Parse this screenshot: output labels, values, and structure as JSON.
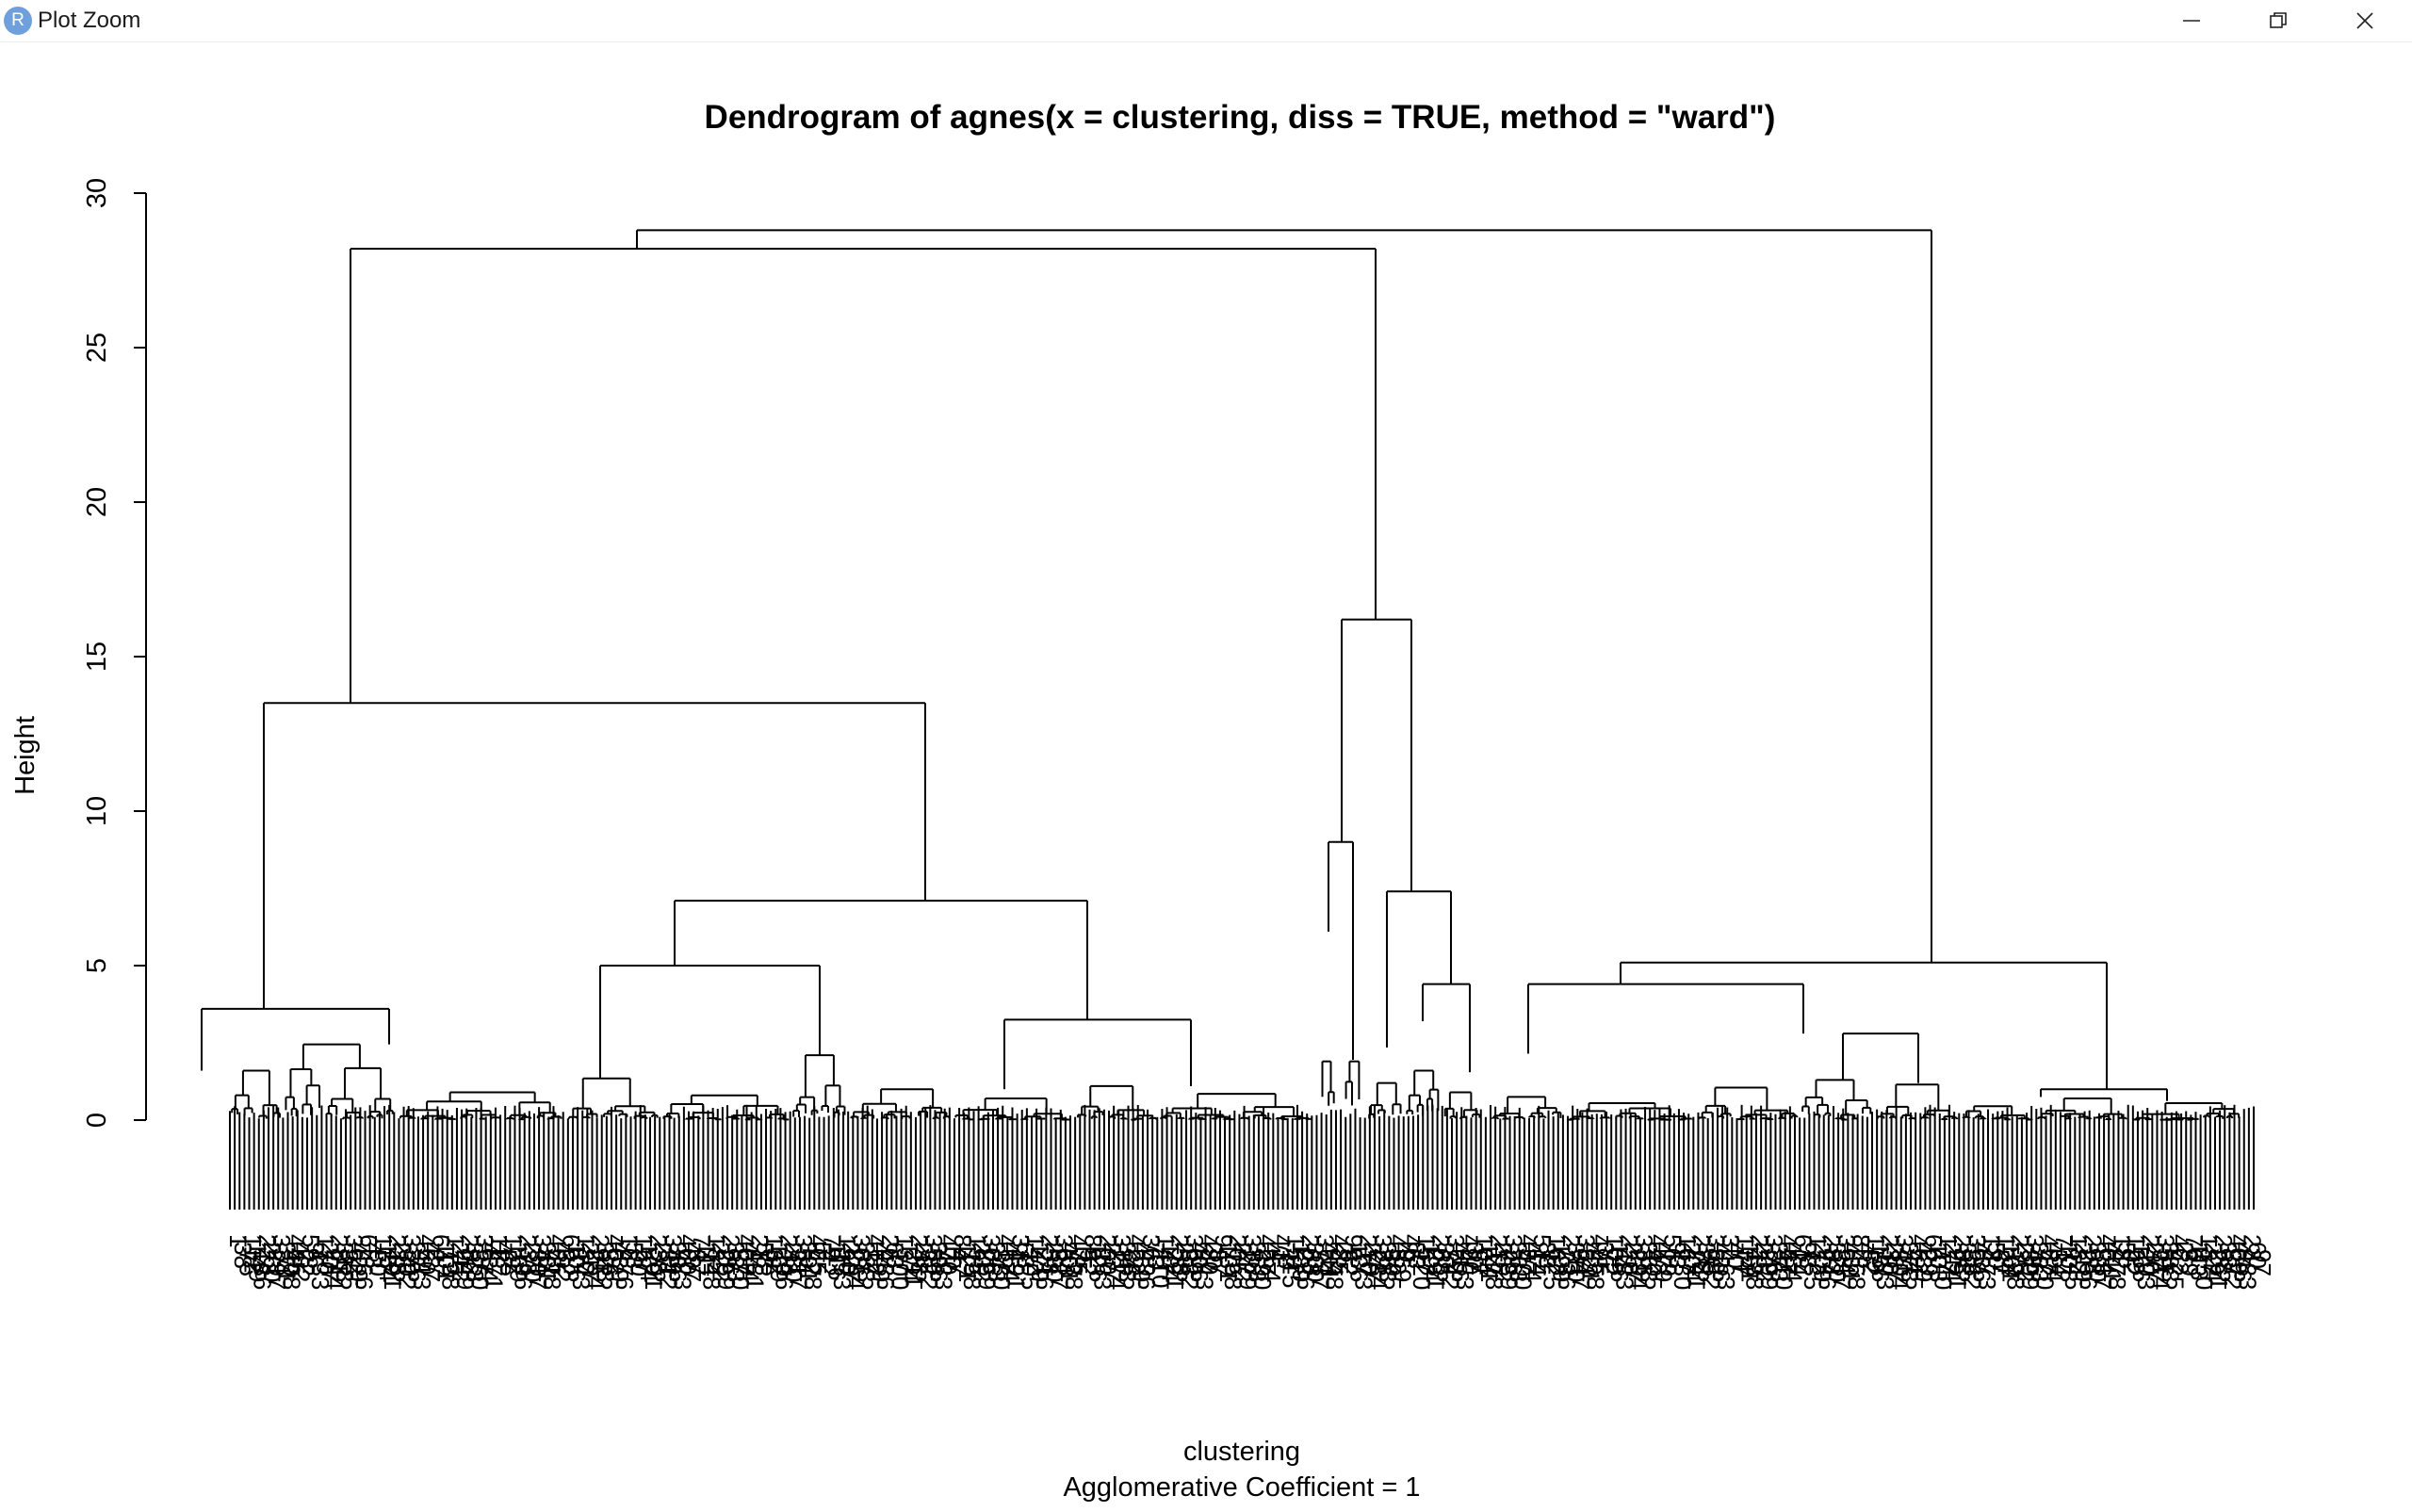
{
  "window": {
    "app_icon_letter": "R",
    "title": "Plot Zoom",
    "controls": [
      "minimize-icon",
      "restore-icon",
      "close-icon"
    ]
  },
  "chart_data": {
    "type": "dendrogram",
    "title": "Dendrogram of  agnes(x = clustering, diss = TRUE, method = \"ward\")",
    "ylabel": "Height",
    "xlabel": "clustering",
    "subtitle": "Agglomerative Coefficient =  1",
    "yticks": [
      0,
      5,
      10,
      15,
      20,
      25,
      30
    ],
    "ylim": [
      0,
      30
    ],
    "n_leaves": 420,
    "merges": [
      {
        "name": "root",
        "height": 28.8
      },
      {
        "name": "left-main",
        "height": 28.2
      },
      {
        "name": "cluster-a",
        "height": 13.5
      },
      {
        "name": "cluster-a1",
        "height": 3.6
      },
      {
        "name": "cluster-a2",
        "height": 7.1
      },
      {
        "name": "cluster-b",
        "height": 16.2
      },
      {
        "name": "cluster-b1",
        "height": 9.0
      },
      {
        "name": "cluster-b2",
        "height": 7.4
      },
      {
        "name": "cluster-c",
        "height": 5.1
      },
      {
        "name": "cluster-c1",
        "height": 4.4
      }
    ],
    "grid": false,
    "axis_color": "#000000"
  }
}
